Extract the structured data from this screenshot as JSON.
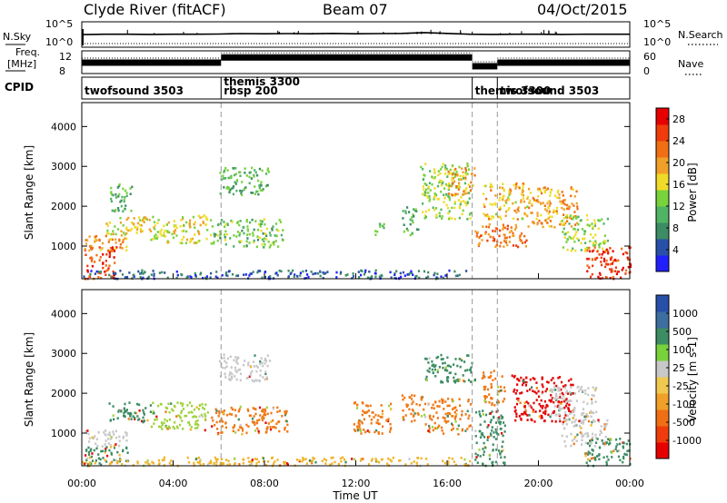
{
  "header": {
    "title": "Clyde River (fitACF)",
    "beam": "Beam 07",
    "date": "04/Oct/2015"
  },
  "colors": {
    "power_scale": [
      "#2020ff",
      "#2850a8",
      "#3c8c64",
      "#50b464",
      "#78d23c",
      "#f0dc28",
      "#f0a028",
      "#f06e14",
      "#f03c0a",
      "#e60000"
    ],
    "velocity_scale": [
      "#e60000",
      "#f03c0a",
      "#f06e14",
      "#f0a028",
      "#f0c850",
      "#c8c8c8",
      "#78d23c",
      "#3c8c64",
      "#3c6ea0",
      "#2850a8"
    ]
  },
  "chart_data": [
    {
      "type": "line",
      "panel": "noise",
      "left_label": "N.Sky",
      "right_label": "N.Search",
      "left_ticks": [
        "10^5",
        "10^0"
      ],
      "right_ticks": [
        "10^5",
        "10^0"
      ],
      "x": [
        0,
        0.5,
        1,
        2,
        3,
        4,
        5,
        6,
        7,
        8,
        9,
        10,
        11,
        12,
        13,
        14,
        15,
        16,
        17,
        18,
        19,
        20,
        21,
        22,
        23,
        24
      ],
      "values": [
        2.7,
        2.75,
        2.8,
        2.8,
        2.75,
        2.8,
        2.8,
        2.85,
        2.95,
        2.9,
        2.95,
        2.9,
        3.0,
        2.9,
        2.95,
        3.0,
        3.2,
        3.0,
        2.8,
        2.75,
        2.8,
        2.8,
        2.75,
        2.8,
        2.8,
        2.8
      ]
    },
    {
      "type": "line",
      "panel": "frequency",
      "left_label": "Freq.",
      "left_unit": "[MHz]",
      "right_label": "Nave",
      "left_ticks": [
        "12",
        "8"
      ],
      "right_ticks": [
        "60",
        "0"
      ],
      "segments": [
        {
          "x": [
            0,
            6.1
          ],
          "freq_mhz": 10.5
        },
        {
          "x": [
            6.1,
            17.1
          ],
          "freq_mhz": 11.8
        },
        {
          "x": [
            17.1,
            18.2
          ],
          "freq_mhz": 9.6
        },
        {
          "x": [
            18.2,
            24
          ],
          "freq_mhz": 10.5
        }
      ]
    },
    {
      "type": "table",
      "panel": "cpid",
      "left_label": "CPID",
      "modes": [
        {
          "start": 0,
          "lines": [
            "twofsound 3503"
          ]
        },
        {
          "start": 6.1,
          "lines": [
            "themis 3300",
            "rbsp 200"
          ]
        },
        {
          "start": 17.1,
          "lines": [
            "themis 3300"
          ]
        },
        {
          "start": 18.2,
          "lines": [
            "twofsound 3503"
          ]
        }
      ]
    },
    {
      "type": "heatmap",
      "panel": "power",
      "ylabel": "Slant Range [km]",
      "yticks": [
        1000,
        2000,
        3000,
        4000
      ],
      "ylim": [
        180,
        4600
      ],
      "xlim": [
        0,
        24
      ],
      "colorbar": {
        "label": "Power [dB]",
        "ticks": [
          "4",
          "8",
          "12",
          "16",
          "20",
          "24",
          "28"
        ],
        "range": [
          0,
          30
        ]
      },
      "blobs": [
        {
          "x": [
            0.1,
            1.5
          ],
          "y": [
            200,
            1000
          ],
          "v": 26
        },
        {
          "x": [
            0.1,
            2.0
          ],
          "y": [
            900,
            1300
          ],
          "v": 19
        },
        {
          "x": [
            1.0,
            3.0
          ],
          "y": [
            1300,
            1800
          ],
          "v": 17
        },
        {
          "x": [
            3.0,
            5.5
          ],
          "y": [
            1100,
            1800
          ],
          "v": 16
        },
        {
          "x": [
            1.2,
            2.2
          ],
          "y": [
            1900,
            2600
          ],
          "v": 10
        },
        {
          "x": [
            5.6,
            8.8
          ],
          "y": [
            1000,
            1700
          ],
          "v": 12
        },
        {
          "x": [
            6.0,
            8.2
          ],
          "y": [
            2300,
            3000
          ],
          "v": 11
        },
        {
          "x": [
            0.0,
            17.0
          ],
          "y": [
            200,
            420
          ],
          "v": 5
        },
        {
          "x": [
            12.8,
            13.2
          ],
          "y": [
            1300,
            1700
          ],
          "v": 13
        },
        {
          "x": [
            14.0,
            14.7
          ],
          "y": [
            1300,
            2000
          ],
          "v": 10
        },
        {
          "x": [
            14.8,
            17.0
          ],
          "y": [
            1700,
            3100
          ],
          "v": 14
        },
        {
          "x": [
            16.0,
            17.2
          ],
          "y": [
            2300,
            3000
          ],
          "v": 20
        },
        {
          "x": [
            17.2,
            19.5
          ],
          "y": [
            1000,
            1600
          ],
          "v": 22
        },
        {
          "x": [
            17.5,
            19.5
          ],
          "y": [
            1700,
            2600
          ],
          "v": 18
        },
        {
          "x": [
            19.5,
            21.8
          ],
          "y": [
            1500,
            2500
          ],
          "v": 20
        },
        {
          "x": [
            21.0,
            23.0
          ],
          "y": [
            900,
            1800
          ],
          "v": 14
        },
        {
          "x": [
            22.0,
            24.0
          ],
          "y": [
            200,
            1000
          ],
          "v": 26
        }
      ]
    },
    {
      "type": "heatmap",
      "panel": "velocity",
      "ylabel": "Slant Range [km]",
      "xlabel": "Time UT",
      "xticks": [
        "00:00",
        "04:00",
        "08:00",
        "12:00",
        "16:00",
        "20:00",
        "00:00"
      ],
      "yticks": [
        1000,
        2000,
        3000,
        4000
      ],
      "ylim": [
        180,
        4600
      ],
      "xlim": [
        0,
        24
      ],
      "colorbar": {
        "label": "Velocity [m s-1]",
        "ticks": [
          "1000",
          "500",
          "100",
          "25",
          "-25",
          "-100",
          "-500",
          "-1000"
        ]
      },
      "blobs": [
        {
          "x": [
            0.1,
            2.0
          ],
          "y": [
            200,
            700
          ],
          "cat": "green"
        },
        {
          "x": [
            0.1,
            2.0
          ],
          "y": [
            700,
            1100
          ],
          "cat": "grey"
        },
        {
          "x": [
            1.0,
            3.0
          ],
          "y": [
            1300,
            1800
          ],
          "cat": "green"
        },
        {
          "x": [
            3.0,
            5.5
          ],
          "y": [
            1100,
            1800
          ],
          "cat": "yellowgreen"
        },
        {
          "x": [
            5.6,
            9.0
          ],
          "y": [
            1000,
            1700
          ],
          "cat": "orange"
        },
        {
          "x": [
            6.0,
            8.2
          ],
          "y": [
            2300,
            3000
          ],
          "cat": "grey"
        },
        {
          "x": [
            0.0,
            17.0
          ],
          "y": [
            200,
            420
          ],
          "cat": "yellow"
        },
        {
          "x": [
            11.8,
            13.5
          ],
          "y": [
            1000,
            1800
          ],
          "cat": "orange"
        },
        {
          "x": [
            14.0,
            15.0
          ],
          "y": [
            1300,
            2000
          ],
          "cat": "orange"
        },
        {
          "x": [
            15.0,
            17.2
          ],
          "y": [
            2300,
            3000
          ],
          "cat": "green"
        },
        {
          "x": [
            15.0,
            17.0
          ],
          "y": [
            1000,
            1900
          ],
          "cat": "orange"
        },
        {
          "x": [
            17.2,
            18.5
          ],
          "y": [
            200,
            1600
          ],
          "cat": "green"
        },
        {
          "x": [
            17.5,
            18.5
          ],
          "y": [
            1700,
            2600
          ],
          "cat": "orange"
        },
        {
          "x": [
            18.8,
            21.5
          ],
          "y": [
            1300,
            2500
          ],
          "cat": "red"
        },
        {
          "x": [
            20.5,
            22.5
          ],
          "y": [
            1300,
            2200
          ],
          "cat": "grey"
        },
        {
          "x": [
            21.0,
            23.0
          ],
          "y": [
            700,
            1400
          ],
          "cat": "grey"
        },
        {
          "x": [
            22.0,
            24.0
          ],
          "y": [
            200,
            900
          ],
          "cat": "green"
        }
      ]
    }
  ]
}
